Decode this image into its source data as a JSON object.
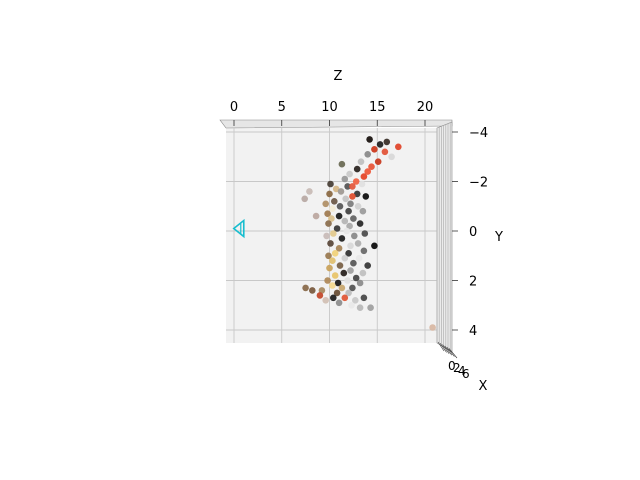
{
  "chart_data": {
    "type": "scatter",
    "projection": "3d",
    "axes": {
      "x": {
        "label": "X",
        "tick_labels": [
          "0",
          "2",
          "4",
          "6"
        ]
      },
      "y": {
        "label": "Y",
        "ticks": [
          -4,
          -2,
          0,
          2,
          4
        ],
        "tick_labels": [
          "−4",
          "−2",
          "0",
          "2",
          "4"
        ],
        "range": [
          -4.5,
          4.6
        ]
      },
      "z": {
        "label": "Z",
        "ticks": [
          0,
          5,
          10,
          15,
          20
        ],
        "tick_labels": [
          "0",
          "5",
          "10",
          "15",
          "20"
        ],
        "range": [
          -1,
          22.5
        ]
      }
    },
    "grid": true,
    "pane_color": "#f2f2f2",
    "marker_shape": "circle",
    "camera_marker": {
      "shape": "triangle",
      "color": "#17becf",
      "z": 0.5,
      "y": -0.1
    },
    "points": [
      {
        "z": 14.2,
        "y": -3.7,
        "c": "#1a1410"
      },
      {
        "z": 15.3,
        "y": -3.5,
        "c": "#222222"
      },
      {
        "z": 14.7,
        "y": -3.3,
        "c": "#cc3a1e"
      },
      {
        "z": 16.0,
        "y": -3.6,
        "c": "#3a302a"
      },
      {
        "z": 15.8,
        "y": -3.2,
        "c": "#e2553a"
      },
      {
        "z": 17.2,
        "y": -3.4,
        "c": "#e0472c"
      },
      {
        "z": 14.0,
        "y": -3.1,
        "c": "#8a8a8a"
      },
      {
        "z": 16.5,
        "y": -3.0,
        "c": "#d8d8d8"
      },
      {
        "z": 13.3,
        "y": -2.8,
        "c": "#bfbfbf"
      },
      {
        "z": 15.1,
        "y": -2.8,
        "c": "#c83b20"
      },
      {
        "z": 11.3,
        "y": -2.7,
        "c": "#6b6b55"
      },
      {
        "z": 14.4,
        "y": -2.6,
        "c": "#e8563a"
      },
      {
        "z": 12.9,
        "y": -2.5,
        "c": "#2c2622"
      },
      {
        "z": 14.0,
        "y": -2.4,
        "c": "#ee5a3c"
      },
      {
        "z": 12.1,
        "y": -2.3,
        "c": "#c9c9c9"
      },
      {
        "z": 13.6,
        "y": -2.2,
        "c": "#e5472a"
      },
      {
        "z": 11.6,
        "y": -2.1,
        "c": "#9a9a9a"
      },
      {
        "z": 12.8,
        "y": -2.0,
        "c": "#f06444"
      },
      {
        "z": 13.4,
        "y": -1.9,
        "c": "#e0e0e0"
      },
      {
        "z": 10.1,
        "y": -1.9,
        "c": "#4a4038"
      },
      {
        "z": 11.9,
        "y": -1.8,
        "c": "#555555"
      },
      {
        "z": 12.4,
        "y": -1.8,
        "c": "#e35a3e"
      },
      {
        "z": 10.7,
        "y": -1.7,
        "c": "#d6b88a"
      },
      {
        "z": 7.9,
        "y": -1.6,
        "c": "#c8bcb6"
      },
      {
        "z": 11.2,
        "y": -1.6,
        "c": "#a09a94"
      },
      {
        "z": 12.9,
        "y": -1.5,
        "c": "#3a3a3a"
      },
      {
        "z": 10.0,
        "y": -1.5,
        "c": "#8b6a45"
      },
      {
        "z": 12.4,
        "y": -1.4,
        "c": "#e05030"
      },
      {
        "z": 7.4,
        "y": -1.3,
        "c": "#b8aaa4"
      },
      {
        "z": 11.7,
        "y": -1.3,
        "c": "#c4c4c4"
      },
      {
        "z": 13.8,
        "y": -1.4,
        "c": "#111111"
      },
      {
        "z": 10.5,
        "y": -1.2,
        "c": "#6e5a48"
      },
      {
        "z": 12.2,
        "y": -1.1,
        "c": "#7f7f7f"
      },
      {
        "z": 9.6,
        "y": -1.1,
        "c": "#b09068"
      },
      {
        "z": 11.1,
        "y": -1.0,
        "c": "#5a5a5a"
      },
      {
        "z": 13.0,
        "y": -1.0,
        "c": "#d2d2d2"
      },
      {
        "z": 10.3,
        "y": -0.9,
        "c": "#f2ead4"
      },
      {
        "z": 12.0,
        "y": -0.8,
        "c": "#444444"
      },
      {
        "z": 9.8,
        "y": -0.7,
        "c": "#a07c52"
      },
      {
        "z": 13.5,
        "y": -0.8,
        "c": "#9c9c9c"
      },
      {
        "z": 11.0,
        "y": -0.6,
        "c": "#1e1e1e"
      },
      {
        "z": 8.6,
        "y": -0.6,
        "c": "#bca8a0"
      },
      {
        "z": 12.5,
        "y": -0.5,
        "c": "#666666"
      },
      {
        "z": 10.2,
        "y": -0.5,
        "c": "#d9c08c"
      },
      {
        "z": 11.6,
        "y": -0.4,
        "c": "#b5b5b5"
      },
      {
        "z": 13.2,
        "y": -0.3,
        "c": "#2a2a2a"
      },
      {
        "z": 9.9,
        "y": -0.3,
        "c": "#8c7050"
      },
      {
        "z": 12.1,
        "y": -0.2,
        "c": "#aaaaaa"
      },
      {
        "z": 10.8,
        "y": -0.1,
        "c": "#3c3c3c"
      },
      {
        "z": 11.8,
        "y": 0.0,
        "c": "#e6e6e6"
      },
      {
        "z": 13.7,
        "y": 0.1,
        "c": "#4e4e4e"
      },
      {
        "z": 10.4,
        "y": 0.1,
        "c": "#e2c98e"
      },
      {
        "z": 12.6,
        "y": 0.2,
        "c": "#8a8a8a"
      },
      {
        "z": 9.7,
        "y": 0.2,
        "c": "#c8bcb8"
      },
      {
        "z": 11.3,
        "y": 0.3,
        "c": "#222222"
      },
      {
        "z": 14.7,
        "y": 0.6,
        "c": "#0e0e0e"
      },
      {
        "z": 13.0,
        "y": 0.5,
        "c": "#b0b0b0"
      },
      {
        "z": 10.1,
        "y": 0.5,
        "c": "#5c4a3c"
      },
      {
        "z": 12.2,
        "y": 0.6,
        "c": "#d8d8d8"
      },
      {
        "z": 11.0,
        "y": 0.7,
        "c": "#a8865a"
      },
      {
        "z": 13.6,
        "y": 0.8,
        "c": "#6a6a6a"
      },
      {
        "z": 10.6,
        "y": 0.9,
        "c": "#f0d27a"
      },
      {
        "z": 12.0,
        "y": 0.9,
        "c": "#333333"
      },
      {
        "z": 9.9,
        "y": 1.0,
        "c": "#9a7a52"
      },
      {
        "z": 11.6,
        "y": 1.1,
        "c": "#cfcfcf"
      },
      {
        "z": 13.1,
        "y": 1.1,
        "c": "#e8e8e8"
      },
      {
        "z": 10.3,
        "y": 1.2,
        "c": "#e0c070"
      },
      {
        "z": 12.5,
        "y": 1.3,
        "c": "#5a5a5a"
      },
      {
        "z": 11.1,
        "y": 1.4,
        "c": "#7a6248"
      },
      {
        "z": 14.0,
        "y": 1.4,
        "c": "#3a3a3a"
      },
      {
        "z": 10.0,
        "y": 1.5,
        "c": "#c9a25c"
      },
      {
        "z": 12.2,
        "y": 1.6,
        "c": "#a0a0a0"
      },
      {
        "z": 11.5,
        "y": 1.7,
        "c": "#2a2420"
      },
      {
        "z": 13.5,
        "y": 1.7,
        "c": "#c0c0c0"
      },
      {
        "z": 10.6,
        "y": 1.8,
        "c": "#e8c46a"
      },
      {
        "z": 12.8,
        "y": 1.9,
        "c": "#484848"
      },
      {
        "z": 9.8,
        "y": 2.0,
        "c": "#b08a5a"
      },
      {
        "z": 11.9,
        "y": 2.0,
        "c": "#e0e0e0"
      },
      {
        "z": 10.9,
        "y": 2.1,
        "c": "#1c1c1c"
      },
      {
        "z": 13.2,
        "y": 2.1,
        "c": "#8c8c8c"
      },
      {
        "z": 10.3,
        "y": 2.2,
        "c": "#f2d890"
      },
      {
        "z": 12.4,
        "y": 2.3,
        "c": "#555555"
      },
      {
        "z": 11.3,
        "y": 2.3,
        "c": "#c8a870"
      },
      {
        "z": 9.2,
        "y": 2.4,
        "c": "#a88a62"
      },
      {
        "z": 10.8,
        "y": 2.5,
        "c": "#6a5038"
      },
      {
        "z": 12.0,
        "y": 2.5,
        "c": "#bdbdbd"
      },
      {
        "z": 7.5,
        "y": 2.3,
        "c": "#8a6c4c"
      },
      {
        "z": 8.2,
        "y": 2.4,
        "c": "#7a5c40"
      },
      {
        "z": 9.0,
        "y": 2.6,
        "c": "#c44a2c"
      },
      {
        "z": 10.4,
        "y": 2.7,
        "c": "#222222"
      },
      {
        "z": 11.6,
        "y": 2.7,
        "c": "#e05838"
      },
      {
        "z": 12.7,
        "y": 2.8,
        "c": "#c8c8c8"
      },
      {
        "z": 13.6,
        "y": 2.7,
        "c": "#4a4a4a"
      },
      {
        "z": 11.0,
        "y": 2.9,
        "c": "#8e8e8e"
      },
      {
        "z": 12.3,
        "y": 3.0,
        "c": "#e8e8e8"
      },
      {
        "z": 13.2,
        "y": 3.1,
        "c": "#b8b8b8"
      },
      {
        "z": 9.6,
        "y": 2.8,
        "c": "#d2c0b4"
      },
      {
        "z": 14.3,
        "y": 3.1,
        "c": "#a0a0a0"
      },
      {
        "z": 20.8,
        "y": 3.9,
        "c": "#d8b8a4"
      }
    ]
  }
}
